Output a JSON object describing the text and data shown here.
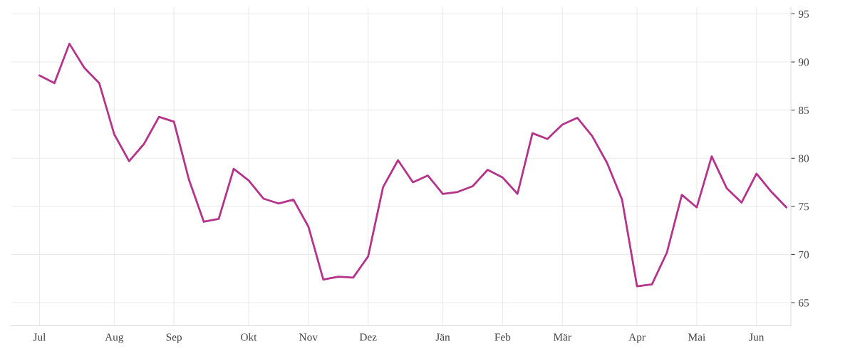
{
  "chart_data": {
    "type": "line",
    "categories": [
      "Jul",
      null,
      null,
      null,
      null,
      "Aug",
      null,
      null,
      null,
      "Sep",
      null,
      null,
      null,
      null,
      "Okt",
      null,
      null,
      null,
      "Nov",
      null,
      null,
      null,
      "Dez",
      null,
      null,
      null,
      null,
      "Jän",
      null,
      null,
      null,
      "Feb",
      null,
      null,
      null,
      "Mär",
      null,
      null,
      null,
      null,
      "Apr",
      null,
      null,
      null,
      "Mai",
      null,
      null,
      null,
      "Jun",
      null,
      null
    ],
    "series": [
      {
        "color": "#b5338a",
        "values": [
          88.6,
          87.8,
          91.9,
          89.4,
          87.8,
          82.5,
          79.7,
          81.5,
          84.3,
          83.8,
          77.8,
          73.4,
          73.7,
          78.9,
          77.7,
          75.8,
          75.3,
          75.7,
          72.9,
          67.4,
          67.7,
          67.6,
          69.8,
          77.0,
          79.8,
          77.5,
          78.2,
          76.3,
          76.5,
          77.1,
          78.8,
          78.0,
          76.3,
          82.6,
          82.0,
          83.5,
          84.2,
          82.3,
          79.5,
          75.7,
          66.7,
          66.9,
          70.2,
          76.2,
          74.9,
          80.2,
          76.9,
          75.4,
          78.4,
          76.5,
          74.9
        ]
      }
    ],
    "ylim": [
      62.6,
      95.7
    ],
    "yticks": [
      65,
      70,
      75,
      80,
      85,
      90,
      95
    ],
    "grid": true,
    "marker": "none",
    "line_style": "solid"
  }
}
